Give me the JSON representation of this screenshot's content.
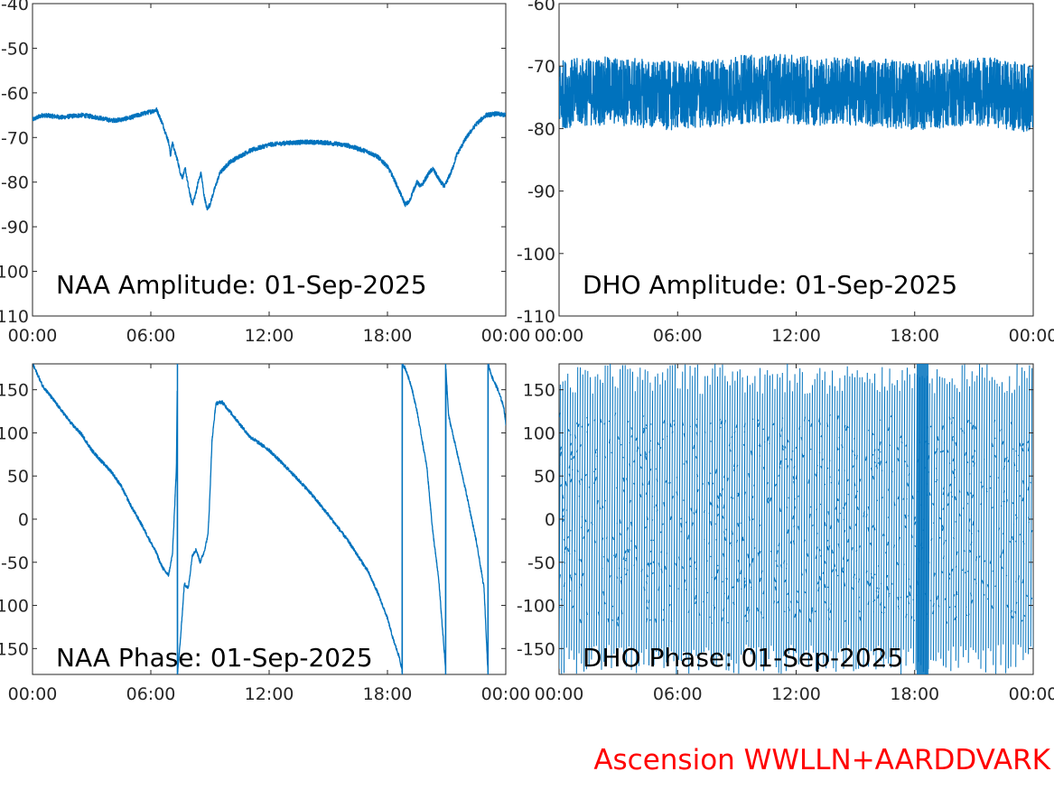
{
  "figure": {
    "footer": "Ascension WWLLN+AARDDVARK",
    "footer_color": "#ff0000",
    "line_color": "#0072bd",
    "text_color": "#262626"
  },
  "chart_data": [
    {
      "type": "line",
      "title": "NAA Amplitude: 01-Sep-2025",
      "xlabel": "",
      "ylabel": "",
      "xlim": [
        0,
        24
      ],
      "ylim": [
        -110,
        -40
      ],
      "x_tick_labels": [
        "00:00",
        "06:00",
        "12:00",
        "18:00",
        "00:00"
      ],
      "y_ticks": [
        -40,
        -50,
        -60,
        -70,
        -80,
        -90,
        -100,
        -110
      ],
      "y_tick_labels": [
        "-40",
        "-50",
        "-60",
        "-70",
        "-80",
        "-90",
        "-100",
        "-110"
      ],
      "band": 0.5,
      "series": [
        {
          "x": [
            0,
            0.5,
            1,
            1.5,
            2,
            2.5,
            3,
            3.5,
            4,
            4.5,
            5,
            5.5,
            6,
            6.3,
            6.6,
            6.9,
            7.0,
            7.1,
            7.2,
            7.35,
            7.5,
            7.6,
            7.75,
            7.9,
            8.1,
            8.25,
            8.4,
            8.55,
            8.7,
            8.85,
            9.0,
            9.2,
            9.5,
            10,
            11,
            12,
            13,
            14,
            15,
            16,
            17,
            17.5,
            18,
            18.3,
            18.6,
            18.9,
            19.1,
            19.3,
            19.5,
            19.7,
            19.9,
            20.1,
            20.3,
            20.5,
            20.7,
            20.9,
            21.1,
            21.3,
            21.5,
            22,
            22.5,
            23,
            23.5,
            24
          ],
          "y": [
            -66,
            -65,
            -65.2,
            -65.5,
            -65.2,
            -65,
            -65.3,
            -65.7,
            -66.2,
            -66,
            -65.5,
            -64.8,
            -64.2,
            -63.8,
            -67,
            -71,
            -74,
            -71,
            -73,
            -75,
            -78,
            -79,
            -77,
            -81,
            -85,
            -83,
            -80,
            -78,
            -83,
            -86,
            -85,
            -82,
            -78,
            -75.5,
            -73,
            -71.6,
            -71.2,
            -71,
            -71.2,
            -71.8,
            -73.2,
            -74.3,
            -76.5,
            -79,
            -82,
            -85,
            -84.5,
            -82,
            -80,
            -81,
            -79.5,
            -78,
            -77,
            -78.5,
            -80,
            -81,
            -79,
            -77,
            -74,
            -70,
            -67,
            -65,
            -64.7,
            -65
          ]
        }
      ]
    },
    {
      "type": "line",
      "title": "DHO Amplitude: 01-Sep-2025",
      "xlabel": "",
      "ylabel": "",
      "xlim": [
        0,
        24
      ],
      "ylim": [
        -110,
        -60
      ],
      "x_tick_labels": [
        "00:00",
        "06:00",
        "12:00",
        "18:00",
        "00:00"
      ],
      "y_ticks": [
        -60,
        -70,
        -80,
        -90,
        -100,
        -110
      ],
      "y_tick_labels": [
        "-60",
        "-70",
        "-80",
        "-90",
        "-100",
        "-110"
      ],
      "band": 5.5,
      "series": [
        {
          "x": [
            0,
            1,
            2,
            3,
            4,
            5,
            6,
            7,
            8,
            9,
            10,
            11,
            12,
            13,
            14,
            15,
            16,
            17,
            18,
            19,
            20,
            21,
            22,
            23,
            24
          ],
          "y": [
            -74.5,
            -74.2,
            -74,
            -74,
            -74.3,
            -74.6,
            -74.8,
            -74.6,
            -74.2,
            -73.8,
            -73.6,
            -73.6,
            -73.8,
            -74,
            -74,
            -74,
            -74.2,
            -74.5,
            -74.8,
            -74.6,
            -74.2,
            -74,
            -74.2,
            -74.8,
            -75.2
          ]
        }
      ]
    },
    {
      "type": "line",
      "title": "NAA Phase: 01-Sep-2025",
      "xlabel": "",
      "ylabel": "",
      "xlim": [
        0,
        24
      ],
      "ylim": [
        -180,
        180
      ],
      "x_tick_labels": [
        "00:00",
        "06:00",
        "12:00",
        "18:00",
        "00:00"
      ],
      "y_ticks": [
        150,
        100,
        50,
        0,
        -50,
        -100,
        -150
      ],
      "y_tick_labels": [
        "150",
        "100",
        "50",
        "0",
        "-50",
        "-100",
        "-150"
      ],
      "band": 2,
      "series": [
        {
          "x": [
            0,
            0.25,
            0.5,
            1,
            1.5,
            2,
            2.5,
            3,
            3.5,
            4,
            4.5,
            5,
            5.5,
            6,
            6.3,
            6.5,
            6.7,
            6.9,
            7.1,
            7.3,
            7.35,
            7.35,
            7.5,
            7.7,
            7.9,
            8.0,
            8.1,
            8.3,
            8.5,
            8.7,
            8.9,
            9.0,
            9.1,
            9.3,
            9.6,
            10,
            11,
            12,
            13,
            14,
            15,
            16,
            17,
            17.5,
            18,
            18.3,
            18.6,
            18.75,
            18.75,
            18.9,
            19.2,
            19.5,
            20,
            20.3,
            20.6,
            20.95,
            20.95,
            21.1,
            21.5,
            22,
            22.5,
            22.9,
            23.1,
            23.1,
            23.3,
            23.6,
            23.9,
            24
          ],
          "y": [
            180,
            168,
            155,
            140,
            125,
            110,
            98,
            80,
            67,
            55,
            38,
            15,
            -5,
            -27,
            -40,
            -52,
            -60,
            -65,
            -40,
            60,
            180,
            -180,
            -140,
            -75,
            -80,
            -62,
            -42,
            -35,
            -50,
            -38,
            -18,
            30,
            90,
            134,
            136,
            125,
            96,
            80,
            57,
            33,
            5,
            -25,
            -60,
            -85,
            -115,
            -140,
            -160,
            -177,
            180,
            175,
            155,
            125,
            60,
            -15,
            -70,
            -175,
            180,
            120,
            80,
            30,
            -25,
            -80,
            -180,
            180,
            165,
            150,
            130,
            110
          ]
        }
      ]
    },
    {
      "type": "line",
      "title": "DHO Phase: 01-Sep-2025",
      "xlabel": "",
      "ylabel": "",
      "xlim": [
        0,
        24
      ],
      "ylim": [
        -180,
        180
      ],
      "x_tick_labels": [
        "00:00",
        "06:00",
        "12:00",
        "18:00",
        "00:00"
      ],
      "y_ticks": [
        150,
        100,
        50,
        0,
        -50,
        -100,
        -150
      ],
      "y_tick_labels": [
        "150",
        "100",
        "50",
        "0",
        "-50",
        "-100",
        "-150"
      ],
      "wrap_cycles": 190,
      "dense_interval": [
        18.1,
        18.7
      ],
      "series": []
    }
  ]
}
